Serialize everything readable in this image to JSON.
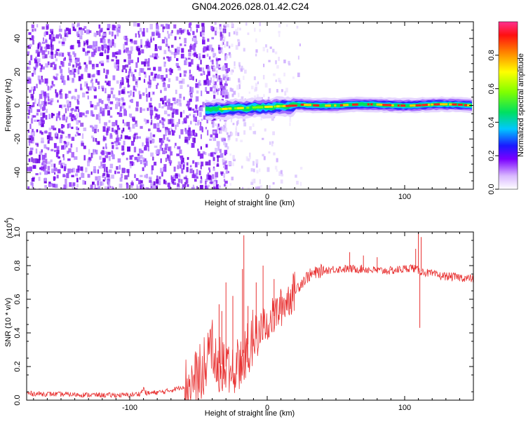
{
  "title": "GN04.2026.028.01.42.C24",
  "chart_data": [
    {
      "type": "heatmap",
      "name": "spectrogram",
      "xlabel": "Height of straight line (km)",
      "ylabel": "Frequency (Hz)",
      "xlim": [
        -175,
        150
      ],
      "ylim": [
        -50,
        50
      ],
      "xticks": [
        -100,
        0,
        100
      ],
      "yticks": [
        -40,
        -20,
        0,
        20,
        40
      ],
      "description_bands": {
        "noise_region_x": [
          -175,
          -20
        ],
        "signal_start_x": -45,
        "signal_center_freq": 0
      },
      "colorbar": {
        "label": "Normalized spectral amplitude",
        "range": [
          0.0,
          1.0
        ],
        "ticks": [
          0.0,
          0.2,
          0.4,
          0.6,
          0.8
        ],
        "tick_labels": [
          "0.0",
          "0.2",
          "0.4",
          "0.6",
          "0.8"
        ]
      }
    },
    {
      "type": "line",
      "name": "snr",
      "xlabel": "Height of straight line (km)",
      "ylabel": "SNR (10 * v/v)",
      "y_multiplier": "(x10",
      "y_multiplier_exp": "4",
      "y_multiplier_close": ")",
      "xlim": [
        -175,
        150
      ],
      "ylim": [
        0,
        1.0
      ],
      "xticks": [
        -100,
        0,
        100
      ],
      "yticks": [
        0.0,
        0.2,
        0.4,
        0.6,
        0.8,
        1.0
      ],
      "ytick_labels": [
        "0.0",
        "0.2",
        "0.4",
        "0.6",
        "0.8",
        "1.0"
      ],
      "color": "#e83232",
      "profile": [
        [
          -175,
          0.04
        ],
        [
          -150,
          0.035
        ],
        [
          -120,
          0.03
        ],
        [
          -100,
          0.03
        ],
        [
          -92,
          0.04
        ],
        [
          -90,
          0.07
        ],
        [
          -88,
          0.04
        ],
        [
          -75,
          0.05
        ],
        [
          -65,
          0.07
        ],
        [
          -55,
          0.1
        ],
        [
          -50,
          0.14
        ],
        [
          -45,
          0.22
        ],
        [
          -42,
          0.32
        ],
        [
          -40,
          0.35
        ],
        [
          -38,
          0.3
        ],
        [
          -35,
          0.22
        ],
        [
          -30,
          0.2
        ],
        [
          -25,
          0.17
        ],
        [
          -20,
          0.22
        ],
        [
          -15,
          0.32
        ],
        [
          -10,
          0.38
        ],
        [
          -5,
          0.42
        ],
        [
          0,
          0.46
        ],
        [
          5,
          0.5
        ],
        [
          10,
          0.55
        ],
        [
          15,
          0.6
        ],
        [
          20,
          0.65
        ],
        [
          25,
          0.7
        ],
        [
          30,
          0.74
        ],
        [
          40,
          0.77
        ],
        [
          50,
          0.78
        ],
        [
          60,
          0.78
        ],
        [
          70,
          0.78
        ],
        [
          80,
          0.77
        ],
        [
          90,
          0.77
        ],
        [
          100,
          0.78
        ],
        [
          105,
          0.79
        ],
        [
          110,
          0.77
        ],
        [
          115,
          0.76
        ],
        [
          125,
          0.74
        ],
        [
          140,
          0.73
        ],
        [
          150,
          0.72
        ]
      ],
      "spikes": [
        [
          -35,
          0.57
        ],
        [
          -33,
          0.53
        ],
        [
          -30,
          0.7
        ],
        [
          -25,
          0.62
        ],
        [
          -18,
          0.78
        ],
        [
          -17,
          0.98
        ],
        [
          -14,
          0.56
        ],
        [
          -8,
          0.7
        ],
        [
          -3,
          0.8
        ],
        [
          5,
          0.72
        ],
        [
          60,
          0.88
        ],
        [
          70,
          0.86
        ],
        [
          80,
          0.85
        ],
        [
          85,
          0.78
        ],
        [
          90,
          0.78
        ],
        [
          108,
          0.9
        ],
        [
          110,
          1.0
        ],
        [
          112,
          0.97
        ],
        [
          111,
          0.43
        ]
      ]
    }
  ]
}
